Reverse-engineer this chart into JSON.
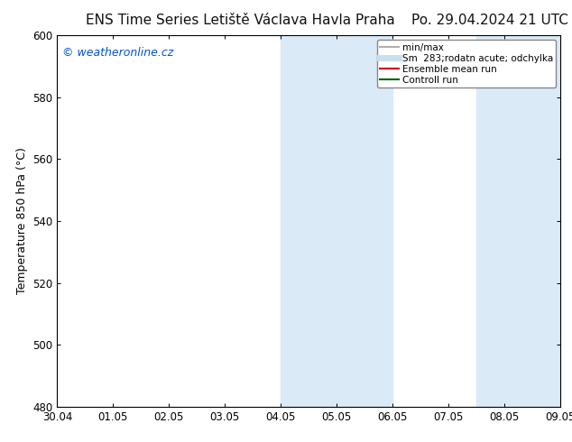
{
  "title_left": "ENS Time Series Letiště Václava Havla Praha",
  "title_right": "Po. 29.04.2024 21 UTC",
  "ylabel": "Temperature 850 hPa (°C)",
  "watermark": "© weatheronline.cz",
  "watermark_color": "#0055cc",
  "xtick_labels": [
    "30.04",
    "01.05",
    "02.05",
    "03.05",
    "04.05",
    "05.05",
    "06.05",
    "07.05",
    "08.05",
    "09.05"
  ],
  "xtick_positions": [
    0,
    1,
    2,
    3,
    4,
    5,
    6,
    7,
    8,
    9
  ],
  "xlim": [
    0,
    9
  ],
  "ylim": [
    480,
    600
  ],
  "yticks": [
    480,
    500,
    520,
    540,
    560,
    580,
    600
  ],
  "background_color": "#ffffff",
  "plot_bg_color": "#ffffff",
  "shaded_regions": [
    {
      "x_start": 4.0,
      "x_end": 6.0,
      "color": "#daeaf7"
    },
    {
      "x_start": 7.5,
      "x_end": 9.0,
      "color": "#daeaf7"
    }
  ],
  "legend_entries": [
    {
      "label": "min/max",
      "color": "#b0b0b0",
      "lw": 1.5,
      "type": "line"
    },
    {
      "label": "Sm  283;rodatn acute; odchylka",
      "color": "#c8dff0",
      "lw": 5,
      "type": "line"
    },
    {
      "label": "Ensemble mean run",
      "color": "#cc0000",
      "lw": 1.5,
      "type": "line"
    },
    {
      "label": "Controll run",
      "color": "#006600",
      "lw": 1.5,
      "type": "line"
    }
  ],
  "title_fontsize": 11,
  "axis_label_fontsize": 9,
  "tick_fontsize": 8.5,
  "legend_fontsize": 7.5,
  "watermark_fontsize": 9
}
